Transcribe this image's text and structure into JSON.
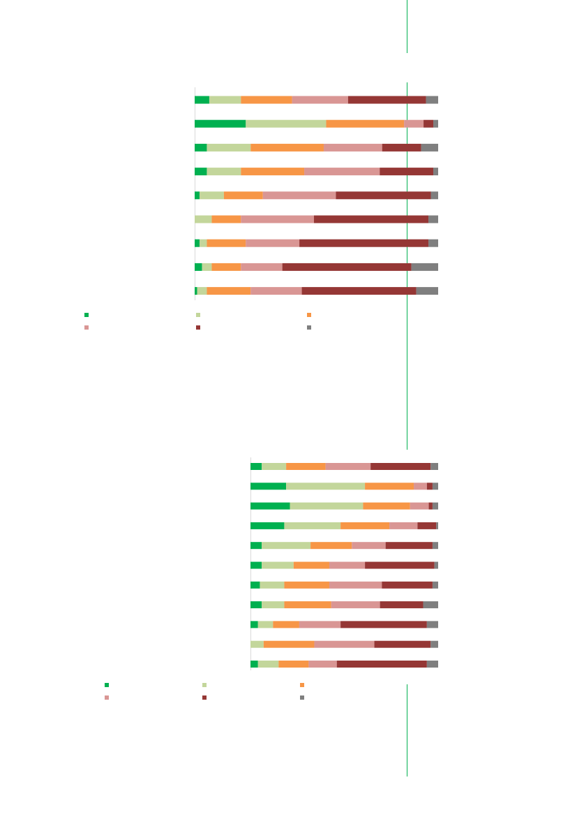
{
  "chart_data": [
    {
      "type": "bar",
      "orientation": "horizontal",
      "stacked": true,
      "categories": [
        null,
        null,
        null,
        null,
        null,
        null,
        null,
        null,
        null
      ],
      "xlim": [
        0,
        100
      ],
      "series": [
        {
          "color": "#00b050",
          "values": [
            6,
            21,
            5,
            5,
            2,
            0,
            2,
            3,
            1
          ]
        },
        {
          "color": "#c3d69b",
          "values": [
            13,
            33,
            18,
            14,
            10,
            7,
            3,
            4,
            4
          ]
        },
        {
          "color": "#f79646",
          "values": [
            21,
            32,
            30,
            26,
            16,
            12,
            16,
            12,
            18
          ]
        },
        {
          "color": "#d99694",
          "values": [
            23,
            8,
            24,
            31,
            30,
            30,
            22,
            17,
            21
          ]
        },
        {
          "color": "#953735",
          "values": [
            32,
            4,
            16,
            22,
            39,
            47,
            53,
            53,
            47
          ]
        },
        {
          "color": "#7f7f7f",
          "values": [
            5,
            2,
            7,
            2,
            3,
            4,
            4,
            11,
            9
          ]
        }
      ]
    },
    {
      "type": "bar",
      "orientation": "horizontal",
      "stacked": true,
      "categories": [
        null,
        null,
        null,
        null,
        null,
        null,
        null,
        null,
        null,
        null,
        null
      ],
      "xlim": [
        0,
        100
      ],
      "series": [
        {
          "color": "#00b050",
          "values": [
            6,
            19,
            21,
            18,
            6,
            6,
            5,
            6,
            4,
            0,
            4
          ]
        },
        {
          "color": "#c3d69b",
          "values": [
            13,
            42,
            39,
            30,
            26,
            17,
            13,
            12,
            8,
            7,
            11
          ]
        },
        {
          "color": "#f79646",
          "values": [
            21,
            26,
            25,
            26,
            22,
            19,
            24,
            25,
            14,
            27,
            16
          ]
        },
        {
          "color": "#d99694",
          "values": [
            24,
            7,
            10,
            15,
            18,
            19,
            28,
            26,
            22,
            32,
            15
          ]
        },
        {
          "color": "#953735",
          "values": [
            32,
            3,
            2,
            10,
            25,
            37,
            27,
            23,
            46,
            30,
            48
          ]
        },
        {
          "color": "#7f7f7f",
          "values": [
            4,
            3,
            3,
            1,
            3,
            2,
            3,
            8,
            6,
            4,
            6
          ]
        }
      ]
    }
  ]
}
